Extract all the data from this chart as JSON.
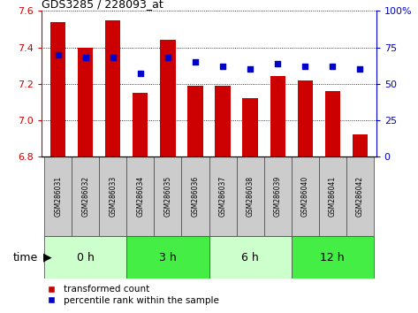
{
  "title": "GDS3285 / 228093_at",
  "samples": [
    "GSM286031",
    "GSM286032",
    "GSM286033",
    "GSM286034",
    "GSM286035",
    "GSM286036",
    "GSM286037",
    "GSM286038",
    "GSM286039",
    "GSM286040",
    "GSM286041",
    "GSM286042"
  ],
  "bar_values": [
    7.54,
    7.4,
    7.55,
    7.15,
    7.44,
    7.19,
    7.19,
    7.12,
    7.24,
    7.22,
    7.16,
    6.92
  ],
  "percentile_values": [
    70,
    68,
    68,
    57,
    68,
    65,
    62,
    60,
    64,
    62,
    62,
    60
  ],
  "bar_bottom": 6.8,
  "ylim": [
    6.8,
    7.6
  ],
  "right_ylim": [
    0,
    100
  ],
  "right_yticks": [
    0,
    25,
    50,
    75,
    100
  ],
  "right_yticklabels": [
    "0",
    "25",
    "50",
    "75",
    "100%"
  ],
  "left_yticks": [
    6.8,
    7.0,
    7.2,
    7.4,
    7.6
  ],
  "bar_color": "#cc0000",
  "percentile_color": "#0000cc",
  "groups": [
    {
      "label": "0 h",
      "samples": [
        0,
        1,
        2
      ],
      "color": "#ccffcc"
    },
    {
      "label": "3 h",
      "samples": [
        3,
        4,
        5
      ],
      "color": "#44ee44"
    },
    {
      "label": "6 h",
      "samples": [
        6,
        7,
        8
      ],
      "color": "#ccffcc"
    },
    {
      "label": "12 h",
      "samples": [
        9,
        10,
        11
      ],
      "color": "#44ee44"
    }
  ],
  "time_label": "time",
  "legend_bar_label": "transformed count",
  "legend_pct_label": "percentile rank within the sample",
  "grid_color": "#000000",
  "bg_color": "#ffffff",
  "tick_color_left": "#cc0000",
  "tick_color_right": "#0000cc",
  "sample_box_color": "#cccccc",
  "sample_box_edge": "#555555"
}
